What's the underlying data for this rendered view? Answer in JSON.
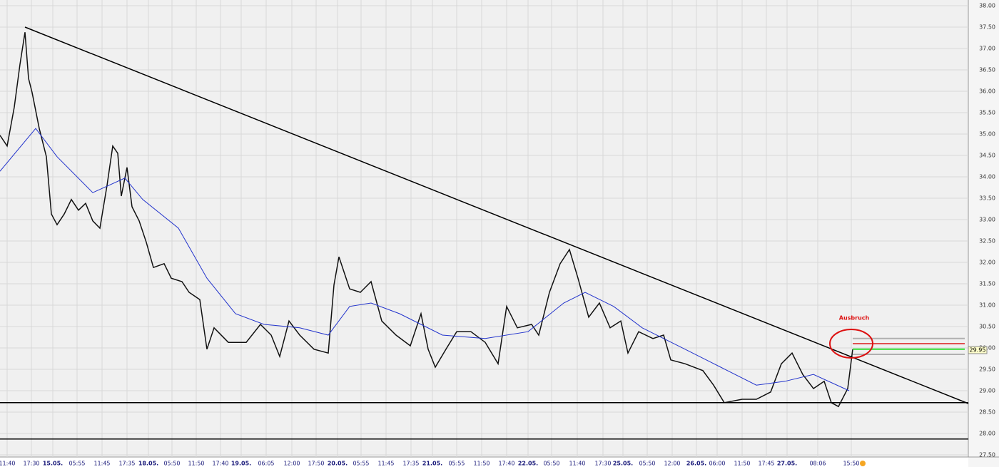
{
  "chart_data": {
    "type": "line",
    "xlim": [
      0,
      1357
    ],
    "ylim": [
      27.5,
      38
    ],
    "grid": true,
    "xticks": [
      {
        "value": 10,
        "label": "11:40"
      },
      {
        "value": 44,
        "label": "17:30"
      },
      {
        "value": 74,
        "label": "15.05."
      },
      {
        "value": 108,
        "label": "05:55"
      },
      {
        "value": 143,
        "label": "11:45"
      },
      {
        "value": 178,
        "label": "17:35"
      },
      {
        "value": 208,
        "label": "18.05."
      },
      {
        "value": 241,
        "label": "05:50"
      },
      {
        "value": 275,
        "label": "11:50"
      },
      {
        "value": 309,
        "label": "17:40"
      },
      {
        "value": 338,
        "label": "19.05."
      },
      {
        "value": 373,
        "label": "06:05"
      },
      {
        "value": 409,
        "label": "12:00"
      },
      {
        "value": 443,
        "label": "17:50"
      },
      {
        "value": 473,
        "label": "20.05."
      },
      {
        "value": 506,
        "label": "05:55"
      },
      {
        "value": 541,
        "label": "11:45"
      },
      {
        "value": 576,
        "label": "17:35"
      },
      {
        "value": 606,
        "label": "21.05."
      },
      {
        "value": 640,
        "label": "05:55"
      },
      {
        "value": 675,
        "label": "11:50"
      },
      {
        "value": 710,
        "label": "17:40"
      },
      {
        "value": 740,
        "label": "22.05."
      },
      {
        "value": 773,
        "label": "05:50"
      },
      {
        "value": 809,
        "label": "11:40"
      },
      {
        "value": 845,
        "label": "17:30"
      },
      {
        "value": 873,
        "label": "25.05."
      },
      {
        "value": 907,
        "label": "05:50"
      },
      {
        "value": 942,
        "label": "12:00"
      },
      {
        "value": 976,
        "label": "26.05."
      },
      {
        "value": 1005,
        "label": "06:00"
      },
      {
        "value": 1040,
        "label": "11:50"
      },
      {
        "value": 1074,
        "label": "17:45"
      },
      {
        "value": 1103,
        "label": "27.05."
      },
      {
        "value": 1146,
        "label": "08:06"
      },
      {
        "value": 1193,
        "label": "15:50"
      }
    ],
    "yticks": [
      {
        "value": 27.5,
        "label": "27.50"
      },
      {
        "value": 28,
        "label": "28.00"
      },
      {
        "value": 28.5,
        "label": "28.50"
      },
      {
        "value": 29,
        "label": "29.00"
      },
      {
        "value": 29.5,
        "label": "29.50"
      },
      {
        "value": 30,
        "label": "30.00"
      },
      {
        "value": 30.5,
        "label": "30.50"
      },
      {
        "value": 31,
        "label": "31.00"
      },
      {
        "value": 31.5,
        "label": "31.50"
      },
      {
        "value": 32,
        "label": "32.00"
      },
      {
        "value": 32.5,
        "label": "32.50"
      },
      {
        "value": 33,
        "label": "33.00"
      },
      {
        "value": 33.5,
        "label": "33.50"
      },
      {
        "value": 34,
        "label": "34.00"
      },
      {
        "value": 34.5,
        "label": "34.50"
      },
      {
        "value": 35,
        "label": "35.00"
      },
      {
        "value": 35.5,
        "label": "35.50"
      },
      {
        "value": 36,
        "label": "36.00"
      },
      {
        "value": 36.5,
        "label": "36.50"
      },
      {
        "value": 37,
        "label": "37.00"
      },
      {
        "value": 37.5,
        "label": "37.50"
      },
      {
        "value": 38,
        "label": "38.00"
      }
    ],
    "series": [
      {
        "color": "#111111",
        "x": [
          0,
          10,
          20,
          28,
          35,
          40,
          45,
          55,
          65,
          72,
          80,
          90,
          100,
          110,
          120,
          130,
          140,
          150,
          158,
          165,
          170,
          178,
          185,
          195,
          205,
          215,
          230,
          240,
          255,
          265,
          280,
          290,
          300,
          320,
          345,
          365,
          380,
          392,
          405,
          420,
          440,
          460,
          468,
          475,
          490,
          505,
          520,
          535,
          555,
          575,
          590,
          600,
          610,
          625,
          640,
          660,
          680,
          698,
          710,
          725,
          745,
          755,
          770,
          785,
          798,
          810,
          825,
          840,
          855,
          870,
          880,
          895,
          915,
          930,
          940,
          960,
          985,
          1000,
          1015,
          1040,
          1060,
          1080,
          1095,
          1110,
          1125,
          1140,
          1155,
          1165,
          1175,
          1188,
          1195
        ],
        "values": [
          34.97,
          34.72,
          35.63,
          36.63,
          37.38,
          36.3,
          35.97,
          35.13,
          34.47,
          33.13,
          32.88,
          33.13,
          33.47,
          33.22,
          33.38,
          32.97,
          32.8,
          33.8,
          34.72,
          34.55,
          33.55,
          34.22,
          33.3,
          32.97,
          32.47,
          31.88,
          31.97,
          31.63,
          31.55,
          31.3,
          31.13,
          29.97,
          30.47,
          30.13,
          30.13,
          30.55,
          30.3,
          29.8,
          30.63,
          30.3,
          29.97,
          29.88,
          31.47,
          32.13,
          31.38,
          31.3,
          31.55,
          30.63,
          30.3,
          30.05,
          30.8,
          29.97,
          29.55,
          29.97,
          30.38,
          30.38,
          30.13,
          29.63,
          30.97,
          30.47,
          30.55,
          30.3,
          31.3,
          31.97,
          32.3,
          31.63,
          30.72,
          31.05,
          30.47,
          30.63,
          29.88,
          30.38,
          30.22,
          30.3,
          29.72,
          29.63,
          29.47,
          29.13,
          28.72,
          28.8,
          28.8,
          28.97,
          29.63,
          29.88,
          29.38,
          29.05,
          29.22,
          28.72,
          28.63,
          29.05,
          29.97
        ]
      },
      {
        "color": "#2233cc",
        "x": [
          0,
          50,
          80,
          130,
          175,
          200,
          250,
          290,
          330,
          370,
          420,
          460,
          490,
          520,
          560,
          620,
          680,
          740,
          790,
          820,
          860,
          900,
          960,
          1010,
          1060,
          1100,
          1140,
          1190
        ],
        "values": [
          34.13,
          35.13,
          34.47,
          33.63,
          33.97,
          33.47,
          32.8,
          31.63,
          30.8,
          30.55,
          30.47,
          30.3,
          30.97,
          31.05,
          30.8,
          30.3,
          30.22,
          30.38,
          31.05,
          31.3,
          30.97,
          30.47,
          29.97,
          29.55,
          29.13,
          29.22,
          29.38,
          29.0
        ]
      }
    ],
    "trendline": {
      "color": "#000000",
      "x": [
        35,
        1357
      ],
      "values": [
        37.5,
        28.7
      ]
    },
    "levels": [
      {
        "color": "#000000",
        "x": [
          0,
          1357
        ],
        "value": 28.72
      },
      {
        "color": "#000000",
        "x": [
          0,
          1357
        ],
        "value": 27.87
      },
      {
        "color": "#b0b0b0",
        "x": [
          1195,
          1352
        ],
        "value": 30.22
      },
      {
        "color": "#e05050",
        "x": [
          1195,
          1352
        ],
        "value": 30.1
      },
      {
        "color": "#33dd33",
        "x": [
          1195,
          1352
        ],
        "value": 29.97
      },
      {
        "color": "#b0b0b0",
        "x": [
          1195,
          1352
        ],
        "value": 29.85
      }
    ],
    "last_price": {
      "value": 29.95,
      "label": "29.95"
    },
    "annotation": {
      "text": "Ausbruch",
      "color": "#dd1111",
      "x": 1193,
      "y": 30.1
    }
  }
}
